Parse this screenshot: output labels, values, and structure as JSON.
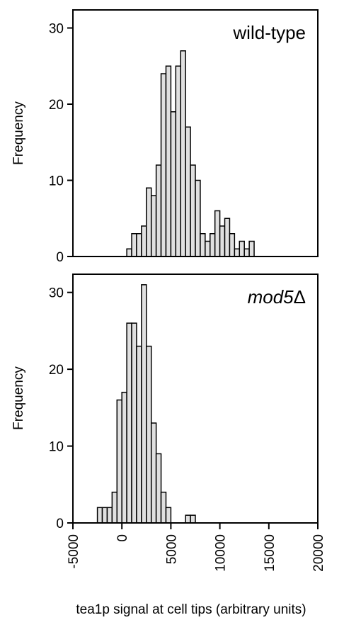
{
  "chart_data": [
    {
      "type": "bar",
      "title": "wild-type",
      "xlabel": "tea1p signal at cell tips (arbitrary units)",
      "ylabel": "Frequency",
      "xlim": [
        -5000,
        20000
      ],
      "ylim": [
        0,
        32
      ],
      "xticks": [
        "-5000",
        "0",
        "5000",
        "10000",
        "15000",
        "20000"
      ],
      "yticks": [
        "0",
        "10",
        "20",
        "30"
      ],
      "bin_width": 500,
      "bins_start": [
        500,
        1000,
        1500,
        2000,
        2500,
        3000,
        3500,
        4000,
        4500,
        5000,
        5500,
        6000,
        6500,
        7000,
        7500,
        8000,
        8500,
        9000,
        9500,
        10000,
        10500,
        11000,
        11500,
        12000,
        12500,
        13000,
        13500,
        14000
      ],
      "values": [
        1,
        3,
        3,
        4,
        9,
        8,
        12,
        24,
        25,
        19,
        25,
        27,
        17,
        12,
        10,
        3,
        2,
        3,
        6,
        4,
        5,
        3,
        1,
        2,
        1,
        2,
        0,
        0
      ],
      "grid": false,
      "bar_color": "#e0e0e0"
    },
    {
      "type": "bar",
      "title": "mod5Δ",
      "xlabel": "tea1p signal at cell tips (arbitrary units)",
      "ylabel": "Frequency",
      "xlim": [
        -5000,
        20000
      ],
      "ylim": [
        0,
        32
      ],
      "xticks": [
        "-5000",
        "0",
        "5000",
        "10000",
        "15000",
        "20000"
      ],
      "yticks": [
        "0",
        "10",
        "20",
        "30"
      ],
      "bin_width": 500,
      "bins_start": [
        -2500,
        -2000,
        -1500,
        -1000,
        -500,
        0,
        500,
        1000,
        1500,
        2000,
        2500,
        3000,
        3500,
        4000,
        4500,
        5000,
        5500,
        6000,
        6500,
        7000,
        7500,
        8000
      ],
      "values": [
        2,
        2,
        2,
        4,
        16,
        17,
        26,
        26,
        23,
        31,
        23,
        13,
        9,
        4,
        2,
        0,
        0,
        0,
        1,
        1,
        0,
        0
      ],
      "grid": false,
      "bar_color": "#e0e0e0"
    }
  ],
  "panels": {
    "top_label": "wild-type",
    "bottom_label_main": "mod5",
    "bottom_label_symbol": "Δ",
    "ylabel": "Frequency",
    "xlabel": "tea1p signal at cell tips (arbitrary units)"
  }
}
